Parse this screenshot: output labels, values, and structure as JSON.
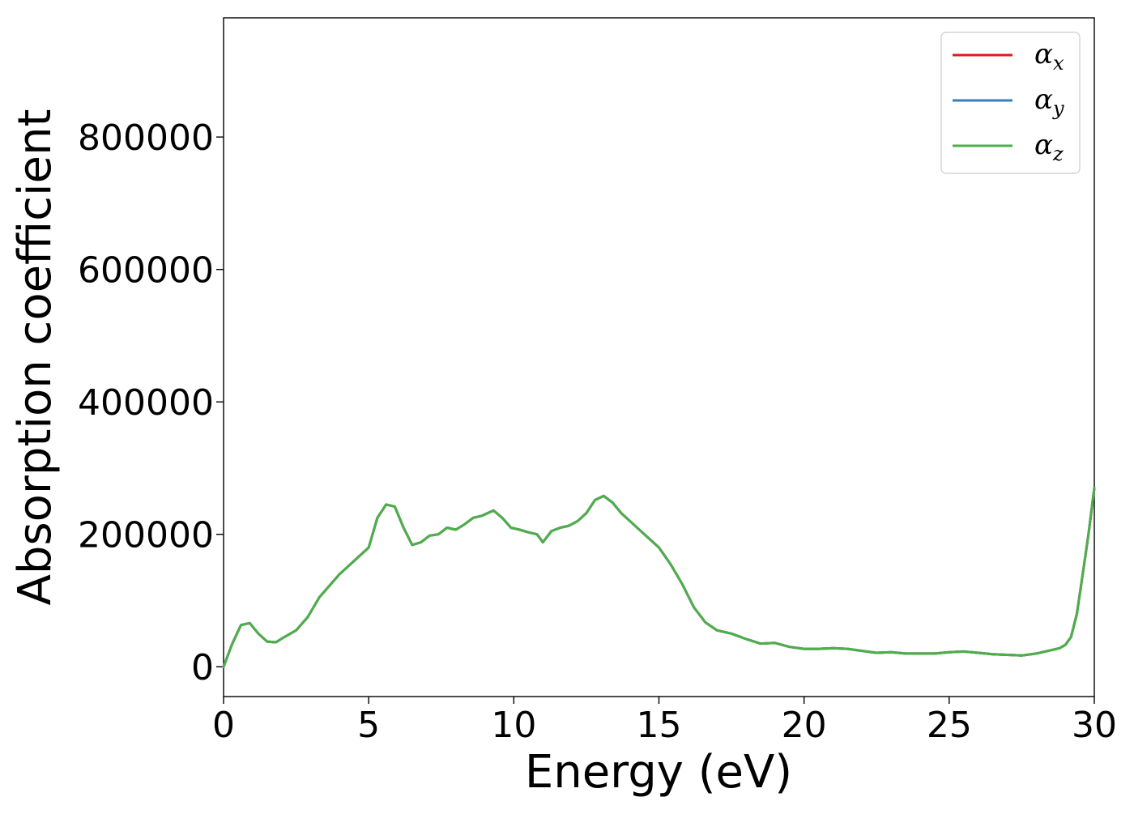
{
  "chart_data": {
    "type": "line",
    "xlabel": "Energy (eV)",
    "ylabel": "Absorption coefficient",
    "xlim": [
      0,
      30
    ],
    "ylim": [
      -45000,
      980000
    ],
    "xticks": [
      0,
      5,
      10,
      15,
      20,
      25,
      30
    ],
    "xtick_labels": [
      "0",
      "5",
      "10",
      "15",
      "20",
      "25",
      "30"
    ],
    "yticks": [
      0,
      200000,
      400000,
      600000,
      800000
    ],
    "ytick_labels": [
      "0",
      "200000",
      "400000",
      "600000",
      "800000"
    ],
    "grid": false,
    "legend_position": "top-right",
    "series": [
      {
        "name": "αx",
        "symbol": "α",
        "subscript": "x",
        "color": "#e41a1c"
      },
      {
        "name": "αy",
        "symbol": "α",
        "subscript": "y",
        "color": "#377eb8"
      },
      {
        "name": "αz",
        "symbol": "α",
        "subscript": "z",
        "color": "#4daf4a"
      }
    ],
    "x": [
      0,
      0.3,
      0.6,
      0.9,
      1.2,
      1.5,
      1.8,
      2.1,
      2.5,
      2.9,
      3.3,
      3.7,
      4.0,
      4.5,
      5.0,
      5.3,
      5.6,
      5.9,
      6.2,
      6.5,
      6.8,
      7.1,
      7.4,
      7.7,
      8.0,
      8.3,
      8.6,
      8.9,
      9.3,
      9.6,
      9.9,
      10.2,
      10.5,
      10.8,
      11.0,
      11.3,
      11.6,
      11.9,
      12.2,
      12.5,
      12.8,
      13.1,
      13.4,
      13.7,
      14.0,
      14.3,
      14.6,
      15.0,
      15.4,
      15.8,
      16.2,
      16.6,
      17.0,
      17.5,
      18.0,
      18.5,
      19.0,
      19.5,
      20.0,
      20.5,
      21.0,
      21.5,
      22.0,
      22.5,
      23.0,
      23.5,
      24.0,
      24.5,
      25.0,
      25.5,
      26.0,
      26.5,
      27.0,
      27.5,
      28.0,
      28.5,
      28.8,
      29.0,
      29.2,
      29.4,
      29.6,
      29.8,
      30.0
    ],
    "values": [
      0,
      35000,
      63000,
      66000,
      50000,
      38000,
      37000,
      45000,
      55000,
      75000,
      105000,
      125000,
      140000,
      160000,
      180000,
      225000,
      245000,
      242000,
      210000,
      184000,
      188000,
      198000,
      200000,
      210000,
      207000,
      215000,
      225000,
      228000,
      236000,
      225000,
      210000,
      207000,
      203000,
      200000,
      188000,
      205000,
      210000,
      213000,
      220000,
      232000,
      252000,
      258000,
      248000,
      232000,
      220000,
      208000,
      196000,
      180000,
      155000,
      125000,
      90000,
      67000,
      55000,
      50000,
      42000,
      35000,
      36000,
      30000,
      27000,
      27000,
      28000,
      27000,
      24000,
      21000,
      22000,
      20000,
      20000,
      20000,
      22000,
      23000,
      21000,
      19000,
      18000,
      17000,
      20000,
      25000,
      28000,
      33000,
      45000,
      80000,
      140000,
      200000,
      270000
    ]
  }
}
